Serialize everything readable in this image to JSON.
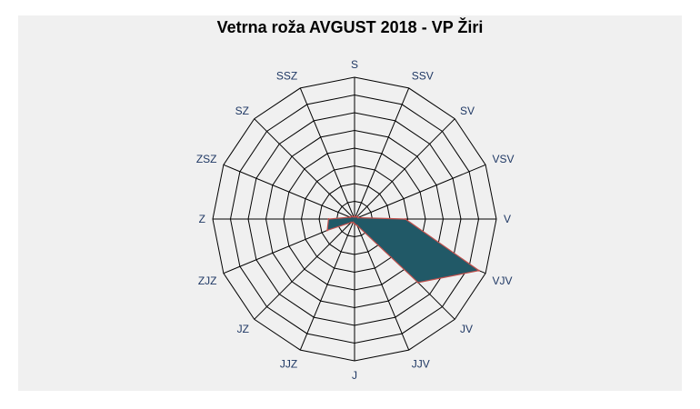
{
  "chart_data": {
    "type": "radar",
    "title": "Vetrna roža AVGUST 2018 - VP Žiri",
    "categories": [
      "S",
      "SSV",
      "SV",
      "VSV",
      "V",
      "VJV",
      "JV",
      "JJV",
      "J",
      "JJZ",
      "JZ",
      "ZJZ",
      "Z",
      "ZSZ",
      "SZ",
      "SSZ"
    ],
    "series": [
      {
        "values": [
          0.2,
          0.2,
          0.3,
          0.3,
          4.3,
          11.4,
          7.6,
          0.6,
          0.4,
          0.3,
          0.4,
          2.5,
          2.2,
          0.4,
          0.3,
          0.2
        ]
      }
    ],
    "rmax": 12,
    "rings": 8,
    "colors": {
      "fill": "#215967",
      "stroke": "#c0504d",
      "grid": "#000000",
      "label": "#1f3864"
    }
  }
}
